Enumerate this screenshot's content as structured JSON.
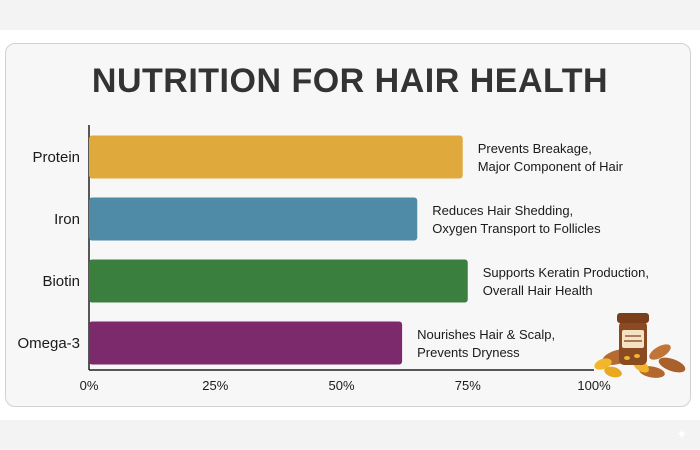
{
  "title": "NUTRITION FOR HAIR HEALTH",
  "chart_data": {
    "type": "bar",
    "orientation": "horizontal",
    "title": "NUTRITION FOR HAIR HEALTH",
    "categories": [
      "Protein",
      "Iron",
      "Biotin",
      "Omega-3"
    ],
    "values": [
      74,
      65,
      75,
      62
    ],
    "colors": [
      "#e0a93c",
      "#4f8aa7",
      "#3b7f3f",
      "#7d2a6d"
    ],
    "annotations": [
      [
        "Prevents Breakage,",
        "Major Component of Hair"
      ],
      [
        "Reduces Hair Shedding,",
        "Oxygen Transport to Follicles"
      ],
      [
        "Supports Keratin Production,",
        "Overall Hair Health"
      ],
      [
        "Nourishes Hair & Scalp,",
        "Prevents Dryness"
      ]
    ],
    "xticks": [
      "0%",
      "25%",
      "50%",
      "75%",
      "100%"
    ],
    "xlim": [
      0,
      100
    ],
    "unit": "%",
    "grid": false,
    "legend": "none"
  },
  "illustration": {
    "jar_label": "HAIR VITAMINS",
    "icon": "vitamin-jar-with-capsules-and-almonds-icon"
  }
}
